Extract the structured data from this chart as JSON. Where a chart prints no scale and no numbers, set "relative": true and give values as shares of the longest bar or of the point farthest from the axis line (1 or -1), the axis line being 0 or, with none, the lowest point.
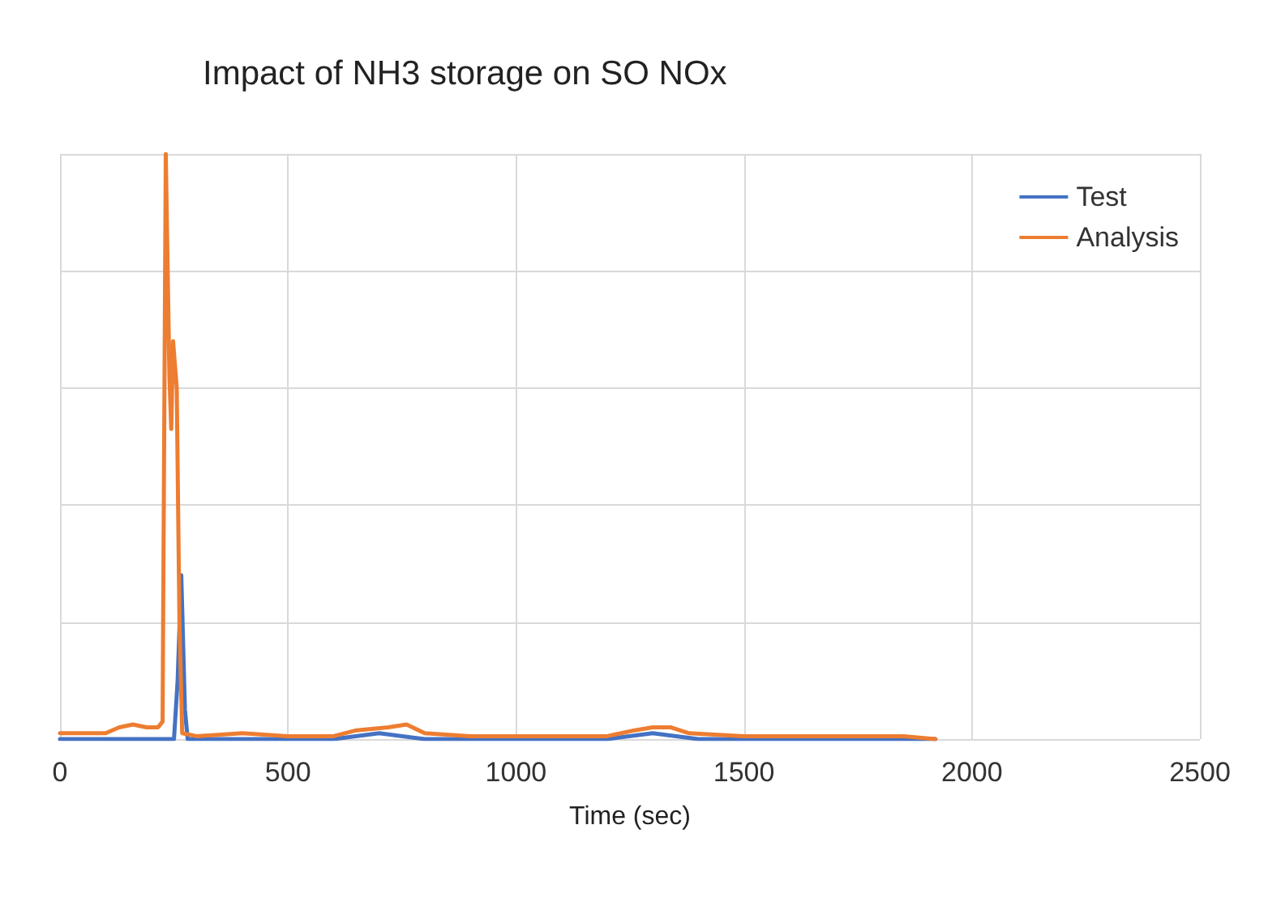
{
  "chart_data": {
    "type": "line",
    "title": "Impact of NH3 storage on SO NOx",
    "xlabel": "Time (sec)",
    "relative": true,
    "xlim": [
      0,
      2500
    ],
    "xticks": [
      0,
      500,
      1000,
      1500,
      2000,
      2500
    ],
    "grid": true,
    "legend": "top right",
    "marker": "none",
    "line_style": "solid",
    "tick_labels": "x",
    "series": [
      {
        "name": "Test",
        "color": "#4472c4",
        "x": [
          0,
          100,
          200,
          250,
          258,
          266,
          274,
          280,
          400,
          600,
          700,
          800,
          1000,
          1200,
          1300,
          1400,
          1600,
          1800,
          1920
        ],
        "values": [
          0,
          0,
          0,
          0,
          0.1,
          0.28,
          0.05,
          0,
          0,
          0,
          0.01,
          0,
          0,
          0,
          0.01,
          0,
          0,
          0,
          0
        ]
      },
      {
        "name": "Analysis",
        "color": "#ed7d31",
        "x": [
          0,
          100,
          130,
          160,
          190,
          215,
          225,
          232,
          240,
          244,
          248,
          256,
          262,
          268,
          300,
          400,
          500,
          600,
          650,
          720,
          760,
          800,
          900,
          1000,
          1100,
          1200,
          1260,
          1300,
          1340,
          1380,
          1500,
          1700,
          1850,
          1920
        ],
        "values": [
          0.01,
          0.01,
          0.02,
          0.025,
          0.02,
          0.02,
          0.03,
          1,
          0.62,
          0.53,
          0.68,
          0.6,
          0.2,
          0.01,
          0.005,
          0.01,
          0.005,
          0.005,
          0.015,
          0.02,
          0.025,
          0.01,
          0.005,
          0.005,
          0.005,
          0.005,
          0.015,
          0.02,
          0.02,
          0.01,
          0.005,
          0.005,
          0.005,
          0
        ]
      }
    ]
  }
}
